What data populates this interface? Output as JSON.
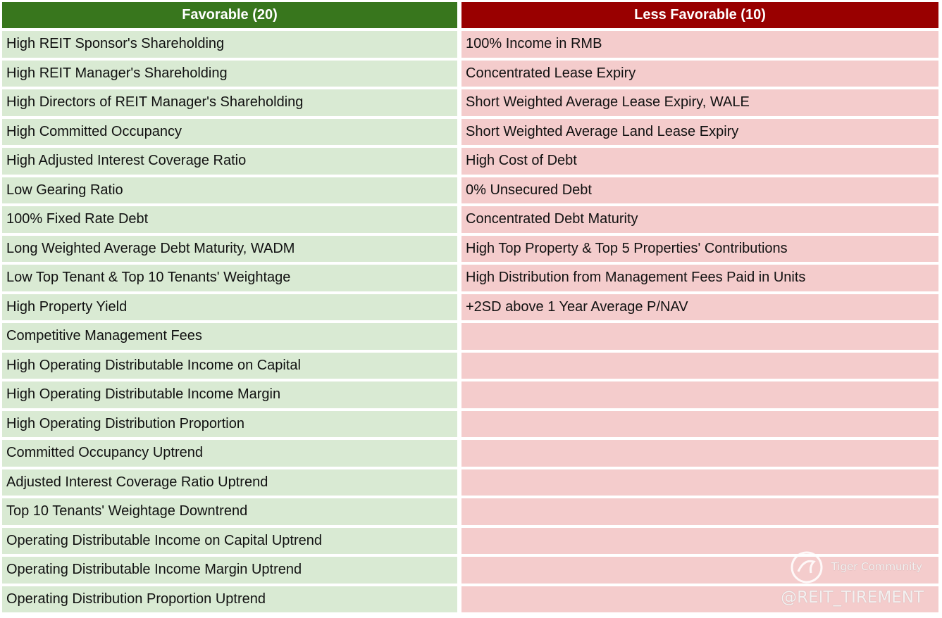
{
  "table": {
    "headers": [
      "Favorable (20)",
      "Less Favorable (10)"
    ],
    "favorable": [
      "High REIT Sponsor's Shareholding",
      "High REIT Manager's Shareholding",
      "High Directors of REIT Manager's Shareholding",
      "High Committed Occupancy",
      "High Adjusted Interest Coverage Ratio",
      "Low Gearing Ratio",
      "100% Fixed Rate Debt",
      "Long Weighted Average Debt Maturity, WADM",
      "Low Top Tenant & Top 10 Tenants' Weightage",
      "High Property Yield",
      "Competitive Management Fees",
      "High Operating Distributable Income on Capital",
      "High Operating Distributable Income Margin",
      "High Operating Distribution Proportion",
      "Committed Occupancy Uptrend",
      "Adjusted Interest Coverage Ratio Uptrend",
      "Top 10 Tenants' Weightage Downtrend",
      "Operating Distributable Income on Capital Uptrend",
      "Operating Distributable Income Margin Uptrend",
      "Operating Distribution Proportion Uptrend"
    ],
    "less_favorable": [
      "100% Income in RMB",
      "Concentrated Lease Expiry",
      "Short Weighted Average Lease Expiry, WALE",
      "Short Weighted Average Land Lease Expiry",
      "High Cost of Debt",
      "0% Unsecured Debt",
      "Concentrated Debt Maturity",
      "High Top Property & Top 5 Properties' Contributions",
      "High Distribution from Management Fees Paid in Units",
      "+2SD above 1 Year Average P/NAV"
    ]
  },
  "watermark": {
    "brand": "Tiger Community",
    "handle": "@REIT_TIREMENT"
  }
}
